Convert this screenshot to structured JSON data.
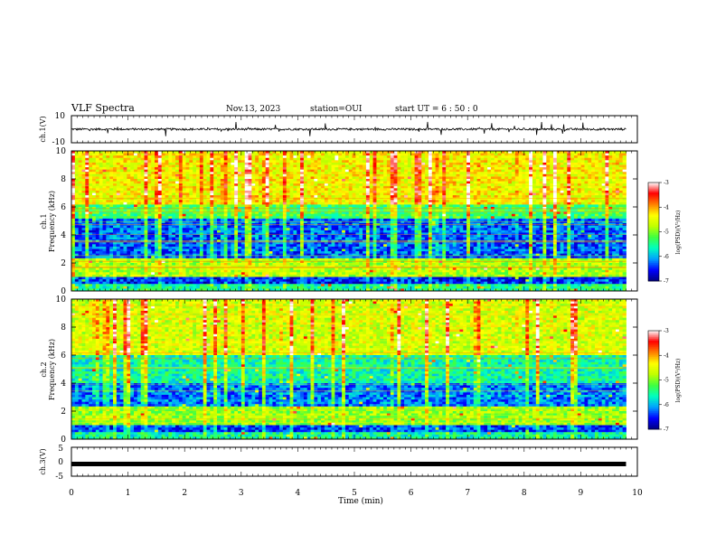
{
  "header": {
    "title": "VLF Spectra",
    "date": "Nov.13, 2023",
    "station": "station=OUI",
    "start": "start UT = 6 : 50 : 0"
  },
  "chart_data": [
    {
      "type": "line",
      "panel": "ch1-waveform",
      "ylabel": "ch.1(V)",
      "ylim": [
        -10,
        10
      ],
      "yticks": [
        "10",
        "-10"
      ],
      "x": [
        0,
        9.8
      ],
      "description_values": {
        "baseline": 0,
        "typical_amplitude": 1.5,
        "spike_amplitude": 5
      }
    },
    {
      "type": "heatmap",
      "panel": "ch1-spectrogram",
      "ylabel": "ch.1\nFrequency (kHz)",
      "ylabel_line1": "ch.1",
      "ylabel_line2": "Frequency (kHz)",
      "ylim": [
        0,
        10
      ],
      "yticks": [
        "0",
        "2",
        "4",
        "6",
        "8",
        "10"
      ],
      "xlim": [
        0,
        10
      ],
      "colorbar": {
        "label": "log(PSD)(V²/Hz)",
        "range": [
          -7,
          -3
        ],
        "ticks": [
          "-3",
          "-4",
          "-5",
          "-6",
          "-7"
        ]
      },
      "bands": [
        {
          "f_low": 0,
          "f_high": 0.5,
          "level": -5.5
        },
        {
          "f_low": 0.5,
          "f_high": 1.0,
          "level": -6.5
        },
        {
          "f_low": 1.0,
          "f_high": 2.4,
          "level": -4.8
        },
        {
          "f_low": 2.4,
          "f_high": 5.2,
          "level": -6.3
        },
        {
          "f_low": 5.2,
          "f_high": 6.2,
          "level": -5.3
        },
        {
          "f_low": 6.2,
          "f_high": 10,
          "level": -4.4
        }
      ]
    },
    {
      "type": "heatmap",
      "panel": "ch2-spectrogram",
      "ylabel": "ch.2\nFrequency (kHz)",
      "ylabel_line1": "ch.2",
      "ylabel_line2": "Frequency (kHz)",
      "ylim": [
        0,
        10
      ],
      "yticks": [
        "0",
        "2",
        "4",
        "6",
        "8",
        "10"
      ],
      "xlim": [
        0,
        10
      ],
      "colorbar": {
        "label": "log(PSD)(V²/Hz)",
        "range": [
          -7,
          -3
        ],
        "ticks": [
          "-3",
          "-4",
          "-5",
          "-6",
          "-7"
        ]
      },
      "bands": [
        {
          "f_low": 0,
          "f_high": 0.5,
          "level": -5.6
        },
        {
          "f_low": 0.5,
          "f_high": 1.0,
          "level": -6.4
        },
        {
          "f_low": 1.0,
          "f_high": 2.3,
          "level": -4.9
        },
        {
          "f_low": 2.3,
          "f_high": 4.0,
          "level": -6.2
        },
        {
          "f_low": 4.0,
          "f_high": 6.0,
          "level": -5.6
        },
        {
          "f_low": 6.0,
          "f_high": 10,
          "level": -4.6
        }
      ]
    },
    {
      "type": "line",
      "panel": "ch3-waveform",
      "ylabel": "ch.3(V)",
      "ylim": [
        -5,
        5
      ],
      "yticks": [
        "5",
        "0",
        "-5"
      ],
      "x": [
        0,
        9.8
      ],
      "y": [
        -0.8,
        -0.8
      ]
    }
  ],
  "xaxis": {
    "label": "Time (min)",
    "ticks": [
      "0",
      "1",
      "2",
      "3",
      "4",
      "5",
      "6",
      "7",
      "8",
      "9",
      "10"
    ],
    "range": [
      0,
      10
    ]
  },
  "colors": {
    "background": "#ffffff",
    "colormap": [
      "#000080",
      "#0000ff",
      "#00a0ff",
      "#00ffc0",
      "#40ff40",
      "#c0ff00",
      "#ffff00",
      "#ff8000",
      "#ff0000",
      "#ffffff"
    ]
  }
}
